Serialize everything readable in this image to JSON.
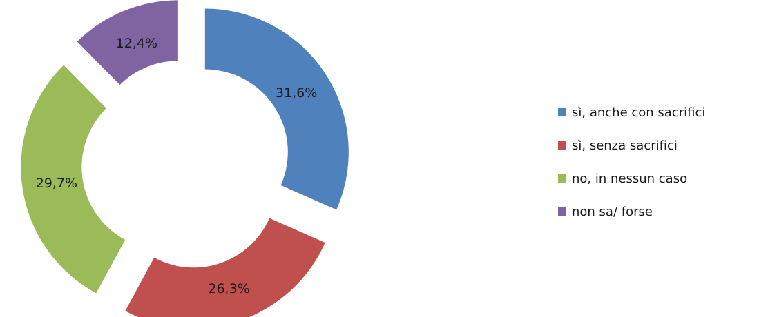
{
  "chart_data": {
    "type": "pie",
    "variant": "exploded-donut",
    "categories": [
      "sì, anche con sacrifici",
      "sì, senza sacrifici",
      "no, in nessun caso",
      "non sa/ forse"
    ],
    "values": [
      31.6,
      26.3,
      29.7,
      12.4
    ],
    "labels": [
      "31,6%",
      "26,3%",
      "29,7%",
      "12,4%"
    ],
    "colors": [
      "#4F81BD",
      "#C0504D",
      "#9BBB59",
      "#8064A2"
    ],
    "legend_position": "right",
    "title": ""
  }
}
